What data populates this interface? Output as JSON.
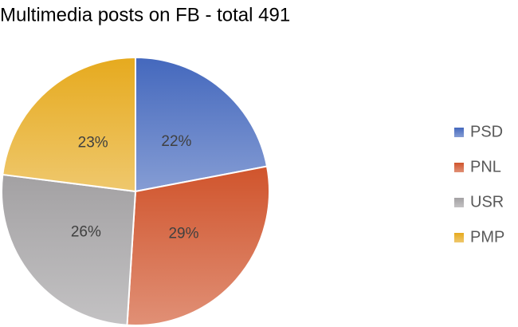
{
  "chart_data": {
    "type": "pie",
    "title": "Multimedia posts on FB - total 491",
    "categories": [
      "PSD",
      "PNL",
      "USR",
      "PMP"
    ],
    "values": [
      22,
      29,
      26,
      23
    ],
    "value_labels": [
      "22%",
      "29%",
      "26%",
      "23%"
    ],
    "colors": [
      "#4468bd",
      "#d0542c",
      "#a3a1a3",
      "#e6aa1e"
    ],
    "legend": "right"
  }
}
